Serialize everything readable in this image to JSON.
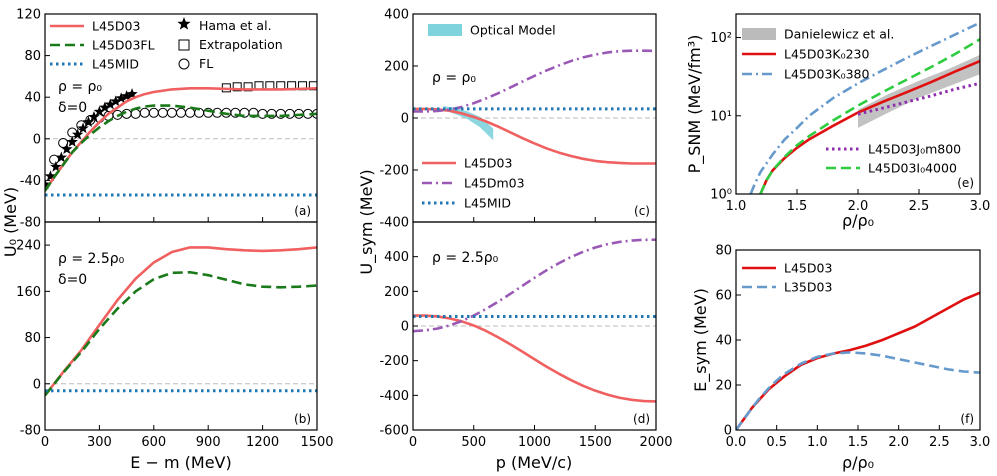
{
  "chart_data": [
    {
      "id": "a",
      "type": "line",
      "panel_label": "(a)",
      "xlim": [
        0,
        1500
      ],
      "ylim": [
        -80,
        120
      ],
      "yticks": [
        -80,
        -40,
        0,
        40,
        80,
        120
      ],
      "annotations": [
        "ρ = ρ₀",
        "δ=0"
      ],
      "series": [
        {
          "name": "L45D03",
          "style": "solid",
          "color": "#f06060",
          "x": [
            0,
            50,
            100,
            150,
            200,
            250,
            300,
            350,
            400,
            450,
            500,
            550,
            600,
            700,
            800,
            900,
            1000,
            1100,
            1200,
            1300,
            1400,
            1500
          ],
          "y": [
            -50,
            -37,
            -25,
            -13,
            -3,
            7,
            16,
            24,
            30,
            36,
            40,
            43,
            45,
            47.5,
            48.5,
            48.5,
            48,
            47.5,
            47.5,
            47.5,
            48,
            48.5
          ]
        },
        {
          "name": "L45D03FL",
          "style": "dashed",
          "color": "#1a7a1a",
          "x": [
            0,
            50,
            100,
            150,
            200,
            250,
            300,
            350,
            400,
            450,
            500,
            550,
            600,
            700,
            800,
            900,
            1000,
            1100,
            1200,
            1300,
            1400,
            1500
          ],
          "y": [
            -50,
            -37,
            -25,
            -13,
            -4,
            4,
            11,
            17,
            22,
            26,
            29,
            31,
            32,
            32,
            30,
            27,
            24,
            22,
            22,
            22,
            23,
            24
          ]
        },
        {
          "name": "L45MID",
          "style": "dotted",
          "color": "#1f77b4",
          "x": [
            0,
            1500
          ],
          "y": [
            -54,
            -54
          ]
        }
      ],
      "markers": [
        {
          "name": "Hama et al.",
          "symbol": "star",
          "x": [
            0,
            30,
            60,
            90,
            120,
            150,
            180,
            210,
            240,
            270,
            300,
            330,
            360,
            390,
            420,
            450,
            480
          ],
          "y": [
            -44,
            -36,
            -27,
            -18,
            -10,
            -3,
            4,
            10,
            16,
            21,
            26,
            30,
            33,
            36,
            39,
            41,
            43
          ]
        },
        {
          "name": "Extrapolation",
          "symbol": "square",
          "x": [
            1000,
            1060,
            1120,
            1180,
            1240,
            1300,
            1360,
            1420,
            1480
          ],
          "y": [
            49,
            50,
            50,
            51,
            51,
            51,
            51,
            51,
            51
          ]
        },
        {
          "name": "FL",
          "symbol": "circle",
          "x": [
            50,
            100,
            150,
            200,
            250,
            300,
            350,
            400,
            450,
            500,
            550,
            600,
            650,
            700,
            750,
            800,
            850,
            900,
            950,
            1000,
            1050,
            1100,
            1150,
            1200,
            1250,
            1300,
            1350,
            1400,
            1450,
            1500
          ],
          "y": [
            -20,
            -4,
            6,
            13,
            18,
            20,
            22,
            23,
            24,
            24,
            25,
            25,
            25,
            25,
            25,
            25,
            25,
            25,
            25,
            25,
            25,
            25,
            25,
            24,
            24,
            24,
            24,
            24,
            24,
            24
          ]
        }
      ]
    },
    {
      "id": "b",
      "type": "line",
      "panel_label": "(b)",
      "xlim": [
        0,
        1500
      ],
      "ylim": [
        -80,
        280
      ],
      "yticks": [
        -80,
        0,
        80,
        160,
        240
      ],
      "xticks": [
        0,
        300,
        600,
        900,
        1200,
        1500
      ],
      "xlabel": "E − m  (MeV)",
      "ylabel": "U₀ (MeV)",
      "annotations": [
        "ρ = 2.5ρ₀",
        "δ=0"
      ],
      "series": [
        {
          "name": "L45D03",
          "style": "solid",
          "color": "#f06060",
          "x": [
            0,
            100,
            200,
            300,
            400,
            500,
            600,
            700,
            800,
            900,
            1000,
            1100,
            1200,
            1300,
            1400,
            1500
          ],
          "y": [
            -20,
            20,
            58,
            102,
            145,
            182,
            210,
            228,
            236,
            236,
            233,
            231,
            230,
            231,
            233,
            236
          ]
        },
        {
          "name": "L45D03FL",
          "style": "dashed",
          "color": "#1a7a1a",
          "x": [
            0,
            100,
            200,
            300,
            400,
            500,
            600,
            700,
            800,
            900,
            1000,
            1100,
            1200,
            1300,
            1400,
            1500
          ],
          "y": [
            -20,
            19,
            55,
            95,
            130,
            160,
            181,
            192,
            193,
            188,
            180,
            172,
            168,
            167,
            168,
            170
          ]
        },
        {
          "name": "L45MID",
          "style": "dotted",
          "color": "#1f77b4",
          "x": [
            0,
            1500
          ],
          "y": [
            -12,
            -12
          ]
        }
      ]
    },
    {
      "id": "c",
      "type": "line",
      "panel_label": "(c)",
      "xlim": [
        0,
        2000
      ],
      "ylim": [
        -400,
        400
      ],
      "yticks": [
        -400,
        -200,
        0,
        200,
        400
      ],
      "annotations": [
        "ρ = ρ₀"
      ],
      "band": {
        "name": "Optical Model",
        "color": "#7fd3dc",
        "x": [
          250,
          350,
          450,
          550,
          660
        ],
        "upper": [
          45,
          40,
          25,
          5,
          -40
        ],
        "lower": [
          30,
          15,
          -5,
          -35,
          -85
        ]
      },
      "series": [
        {
          "name": "L45D03",
          "style": "solid",
          "color": "#f06060",
          "x": [
            0,
            100,
            200,
            300,
            400,
            500,
            600,
            700,
            800,
            900,
            1000,
            1100,
            1200,
            1300,
            1400,
            1500,
            1600,
            1700,
            1800,
            1900,
            2000
          ],
          "y": [
            35,
            35,
            33,
            28,
            18,
            4,
            -13,
            -33,
            -55,
            -77,
            -98,
            -117,
            -133,
            -146,
            -157,
            -165,
            -170,
            -173,
            -175,
            -175,
            -175
          ]
        },
        {
          "name": "L45Dm03",
          "style": "dashdot",
          "color": "#9b59b6",
          "x": [
            0,
            100,
            200,
            300,
            400,
            500,
            600,
            700,
            800,
            900,
            1000,
            1100,
            1200,
            1300,
            1400,
            1500,
            1600,
            1700,
            1800,
            1900,
            2000
          ],
          "y": [
            25,
            25,
            27,
            32,
            42,
            57,
            75,
            95,
            117,
            140,
            162,
            183,
            202,
            219,
            233,
            244,
            252,
            257,
            259,
            259,
            258
          ]
        },
        {
          "name": "L45MID",
          "style": "dotted",
          "color": "#1f77b4",
          "x": [
            0,
            2000
          ],
          "y": [
            35,
            35
          ]
        }
      ]
    },
    {
      "id": "d",
      "type": "line",
      "panel_label": "(d)",
      "xlim": [
        0,
        2000
      ],
      "ylim": [
        -600,
        600
      ],
      "yticks": [
        -600,
        -400,
        -200,
        0,
        200,
        400
      ],
      "xticks": [
        0,
        500,
        1000,
        1500,
        2000
      ],
      "xlabel": "p (MeV/c)",
      "ylabel": "U_sym (MeV)",
      "annotations": [
        "ρ = 2.5ρ₀"
      ],
      "series": [
        {
          "name": "L45D03",
          "style": "solid",
          "color": "#f06060",
          "x": [
            0,
            100,
            200,
            300,
            400,
            500,
            600,
            700,
            800,
            900,
            1000,
            1100,
            1200,
            1300,
            1400,
            1500,
            1600,
            1700,
            1800,
            1900,
            2000
          ],
          "y": [
            60,
            60,
            55,
            44,
            27,
            3,
            -28,
            -65,
            -105,
            -148,
            -192,
            -235,
            -275,
            -312,
            -345,
            -373,
            -396,
            -414,
            -426,
            -433,
            -435
          ]
        },
        {
          "name": "L45Dm03",
          "style": "dashdot",
          "color": "#9b59b6",
          "x": [
            0,
            100,
            200,
            300,
            400,
            500,
            600,
            700,
            800,
            900,
            1000,
            1100,
            1200,
            1300,
            1400,
            1500,
            1600,
            1700,
            1800,
            1900,
            2000
          ],
          "y": [
            -30,
            -25,
            -15,
            3,
            28,
            60,
            98,
            140,
            185,
            232,
            278,
            322,
            362,
            398,
            428,
            453,
            472,
            485,
            493,
            497,
            498
          ]
        },
        {
          "name": "L45MID",
          "style": "dotted",
          "color": "#1f77b4",
          "x": [
            0,
            2000
          ],
          "y": [
            55,
            55
          ]
        }
      ]
    },
    {
      "id": "e",
      "type": "line",
      "panel_label": "(e)",
      "yscale": "log",
      "xlim": [
        1.0,
        3.0
      ],
      "ylim": [
        1,
        200
      ],
      "xticks": [
        1.0,
        1.5,
        2.0,
        2.5,
        3.0
      ],
      "yticks": [
        1,
        10,
        100
      ],
      "yticklabels": [
        "10⁰",
        "10¹",
        "10²"
      ],
      "xlabel": "ρ/ρ₀",
      "ylabel": "P_SNM (MeV/fm³)",
      "band": {
        "name": "Danielewicz et al.",
        "color": "#bbbbbb",
        "x": [
          2.0,
          2.25,
          2.5,
          2.75,
          3.0
        ],
        "upper": [
          12,
          19,
          28,
          40,
          60
        ],
        "lower": [
          7,
          11,
          17,
          24,
          34
        ]
      },
      "series": [
        {
          "name": "L45D03K₀230",
          "style": "solid",
          "color": "#e01010",
          "x": [
            1.2,
            1.25,
            1.3,
            1.4,
            1.5,
            1.6,
            1.8,
            2.0,
            2.2,
            2.4,
            2.6,
            2.8,
            3.0
          ],
          "y": [
            1,
            1.5,
            2,
            2.9,
            3.9,
            5,
            7.5,
            11,
            15,
            20,
            27,
            37,
            50
          ]
        },
        {
          "name": "L45D03K₀380",
          "style": "dashdot",
          "color": "#6699cc",
          "x": [
            1.12,
            1.15,
            1.2,
            1.3,
            1.4,
            1.5,
            1.6,
            1.8,
            2.0,
            2.2,
            2.4,
            2.6,
            2.8,
            3.0
          ],
          "y": [
            1,
            1.3,
            1.9,
            3.2,
            5,
            7,
            10,
            17,
            26,
            38,
            55,
            78,
            110,
            155
          ]
        },
        {
          "name": "L45D03J₀m800",
          "style": "dotted",
          "color": "#8e2db0",
          "x": [
            2.0,
            2.2,
            2.4,
            2.6,
            2.8,
            3.0
          ],
          "y": [
            10.5,
            12.5,
            15,
            18,
            22,
            26
          ]
        },
        {
          "name": "L45D03I₀4000",
          "style": "dashed",
          "color": "#2ecc40",
          "x": [
            1.2,
            1.25,
            1.3,
            1.4,
            1.5,
            1.6,
            1.8,
            2.0,
            2.2,
            2.4,
            2.6,
            2.8,
            3.0
          ],
          "y": [
            1,
            1.5,
            2,
            3,
            4.2,
            5.5,
            8.8,
            13.5,
            20,
            29,
            42,
            62,
            95
          ]
        }
      ]
    },
    {
      "id": "f",
      "type": "line",
      "panel_label": "(f)",
      "xlim": [
        0.0,
        3.0
      ],
      "ylim": [
        0,
        80
      ],
      "xticks": [
        0.0,
        0.5,
        1.0,
        1.5,
        2.0,
        2.5,
        3.0
      ],
      "yticks": [
        0,
        20,
        40,
        60,
        80
      ],
      "xlabel": "ρ/ρ₀",
      "ylabel": "E_sym (MeV)",
      "series": [
        {
          "name": "L45D03",
          "style": "solid",
          "color": "#e01010",
          "x": [
            0,
            0.1,
            0.2,
            0.3,
            0.4,
            0.5,
            0.6,
            0.8,
            1.0,
            1.2,
            1.4,
            1.6,
            1.8,
            2.0,
            2.2,
            2.4,
            2.6,
            2.8,
            3.0
          ],
          "y": [
            0,
            5,
            10,
            14,
            18,
            21,
            24,
            29,
            32,
            34,
            35.5,
            37.5,
            40,
            43,
            46,
            50,
            54,
            58,
            61
          ]
        },
        {
          "name": "L35D03",
          "style": "dashed",
          "color": "#6699cc",
          "x": [
            0,
            0.1,
            0.2,
            0.3,
            0.4,
            0.5,
            0.6,
            0.8,
            1.0,
            1.2,
            1.4,
            1.6,
            1.8,
            2.0,
            2.2,
            2.4,
            2.6,
            2.8,
            3.0
          ],
          "y": [
            0,
            5,
            10,
            14.5,
            18.5,
            22,
            25,
            29.5,
            32.5,
            34,
            34.5,
            34,
            33,
            31.5,
            30,
            28.5,
            27,
            26,
            25.5
          ]
        }
      ]
    }
  ]
}
